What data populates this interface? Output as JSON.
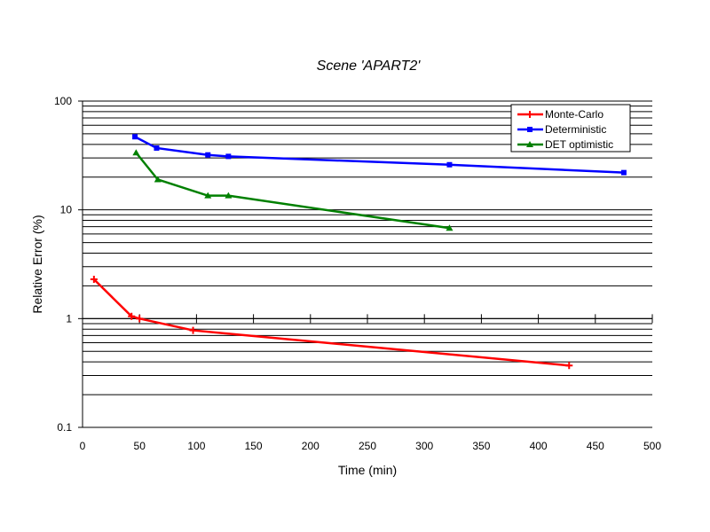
{
  "chart_data": {
    "type": "line",
    "title": "Scene  'APART2'",
    "xlabel": "Time (min)",
    "ylabel": "Relative Error (%)",
    "xlim": [
      0,
      500
    ],
    "ylim": [
      0.1,
      100
    ],
    "yscale": "log",
    "x_ticks": [
      "0",
      "50",
      "100",
      "150",
      "200",
      "250",
      "300",
      "350",
      "400",
      "450",
      "500"
    ],
    "y_tick_labels": [
      "0.1",
      "1",
      "10",
      "100"
    ],
    "grid": "horizontal major and minor",
    "legend": "top-right",
    "series": [
      {
        "name": "Monte-Carlo",
        "color": "#ff0000",
        "marker": "plus",
        "points": [
          [
            10,
            2.3
          ],
          [
            43,
            1.05
          ],
          [
            50,
            1.0
          ],
          [
            97,
            0.78
          ],
          [
            427,
            0.37
          ]
        ]
      },
      {
        "name": "Deterministic",
        "color": "#0000ff",
        "marker": "square",
        "points": [
          [
            46,
            47
          ],
          [
            65,
            37
          ],
          [
            110,
            32
          ],
          [
            128,
            31
          ],
          [
            322,
            26
          ],
          [
            475,
            22
          ]
        ]
      },
      {
        "name": "DET optimistic",
        "color": "#008000",
        "marker": "triangle",
        "points": [
          [
            47,
            33.5
          ],
          [
            66,
            19
          ],
          [
            110,
            13.5
          ],
          [
            128,
            13.5
          ],
          [
            322,
            6.8
          ]
        ]
      }
    ]
  }
}
